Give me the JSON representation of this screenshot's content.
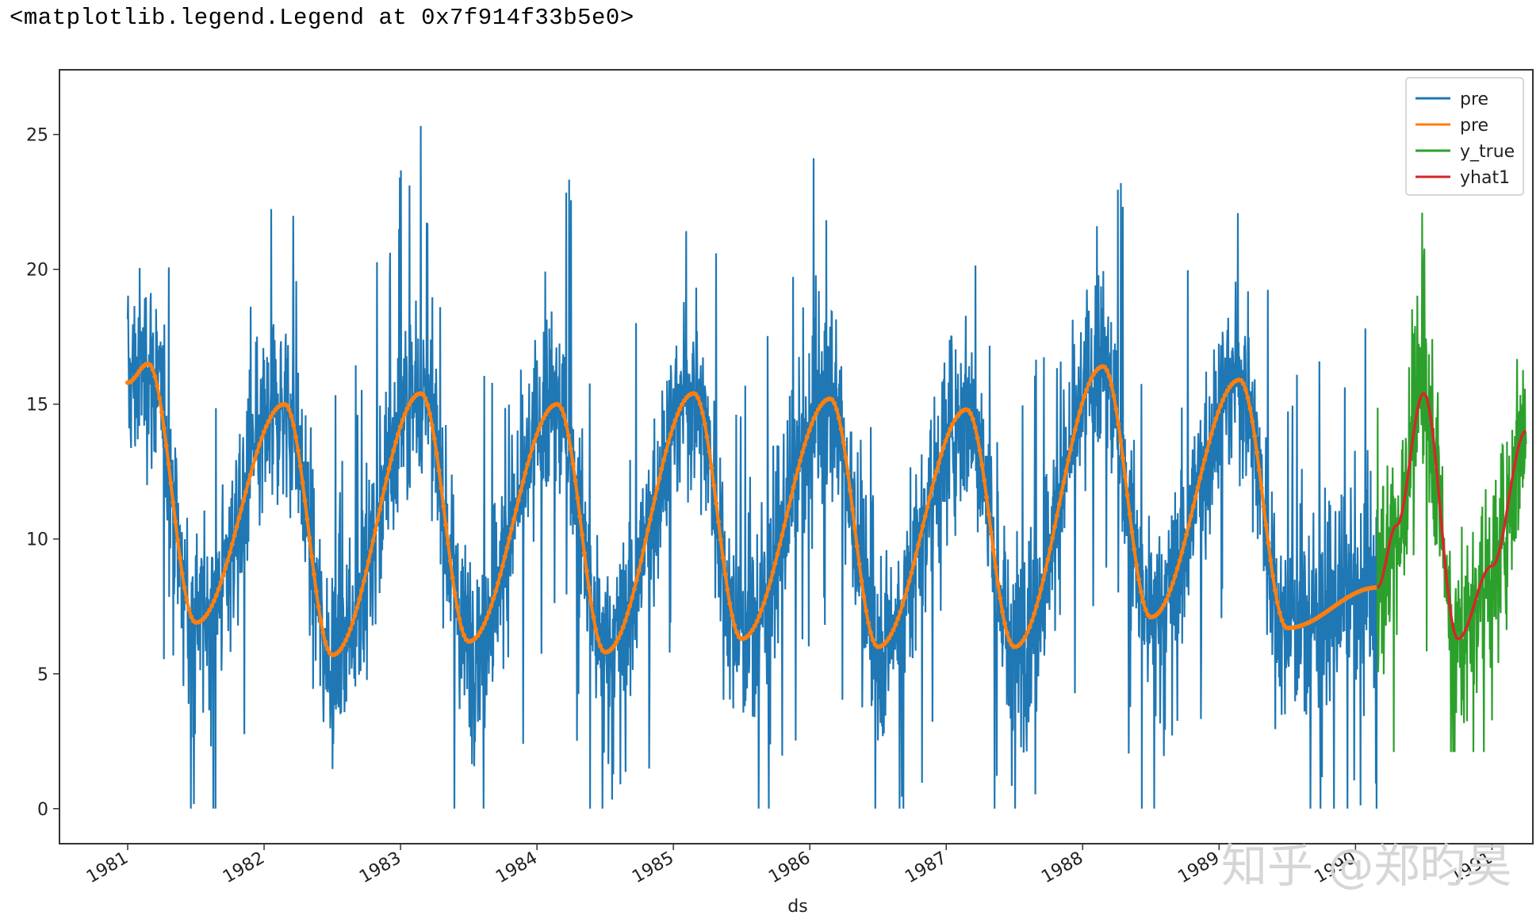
{
  "output": {
    "repr_text": "<matplotlib.legend.Legend at 0x7f914f33b5e0>"
  },
  "chart_data": {
    "type": "line",
    "title": "",
    "xlabel": "ds",
    "ylabel": "",
    "xlim": [
      1980.5,
      1991.3
    ],
    "ylim": [
      -1.3,
      27.4
    ],
    "x_ticks": [
      1981,
      1982,
      1983,
      1984,
      1985,
      1986,
      1987,
      1988,
      1989,
      1990,
      1991
    ],
    "x_tick_labels": [
      "1981",
      "1982",
      "1983",
      "1984",
      "1985",
      "1986",
      "1987",
      "1988",
      "1989",
      "1990",
      "1991"
    ],
    "y_ticks": [
      0,
      5,
      10,
      15,
      20,
      25
    ],
    "y_tick_labels": [
      "0",
      "5",
      "10",
      "15",
      "20",
      "25"
    ],
    "grid": false,
    "legend_position": "top-right",
    "series": [
      {
        "name": "pre",
        "color": "#1f77b4",
        "kind": "noisy-daily",
        "x_range": [
          1981.0,
          1990.16
        ],
        "smooth_keypoints": [
          [
            1981.0,
            15.8
          ],
          [
            1981.15,
            16.5
          ],
          [
            1981.5,
            6.9
          ],
          [
            1982.15,
            15.0
          ],
          [
            1982.5,
            5.7
          ],
          [
            1983.15,
            15.4
          ],
          [
            1983.5,
            6.2
          ],
          [
            1984.15,
            15.0
          ],
          [
            1984.5,
            5.8
          ],
          [
            1985.15,
            15.4
          ],
          [
            1985.5,
            6.3
          ],
          [
            1986.15,
            15.2
          ],
          [
            1986.5,
            6.0
          ],
          [
            1987.15,
            14.8
          ],
          [
            1987.5,
            6.0
          ],
          [
            1988.15,
            16.4
          ],
          [
            1988.5,
            7.1
          ],
          [
            1989.15,
            15.9
          ],
          [
            1989.5,
            6.7
          ],
          [
            1990.16,
            8.2
          ]
        ],
        "max": 26.3,
        "min": 0.0
      },
      {
        "name": "pre",
        "color": "#ff7f0e",
        "kind": "smooth-with-markers",
        "x_range": [
          1981.0,
          1990.16
        ],
        "keypoints": [
          [
            1981.0,
            15.8
          ],
          [
            1981.15,
            16.5
          ],
          [
            1981.5,
            6.9
          ],
          [
            1982.15,
            15.0
          ],
          [
            1982.5,
            5.7
          ],
          [
            1983.15,
            15.4
          ],
          [
            1983.5,
            6.2
          ],
          [
            1984.15,
            15.0
          ],
          [
            1984.5,
            5.8
          ],
          [
            1985.15,
            15.4
          ],
          [
            1985.5,
            6.3
          ],
          [
            1986.15,
            15.2
          ],
          [
            1986.5,
            6.0
          ],
          [
            1987.15,
            14.8
          ],
          [
            1987.5,
            6.0
          ],
          [
            1988.15,
            16.4
          ],
          [
            1988.5,
            7.1
          ],
          [
            1989.15,
            15.9
          ],
          [
            1989.5,
            6.7
          ],
          [
            1990.16,
            8.2
          ]
        ]
      },
      {
        "name": "y_true",
        "color": "#2ca02c",
        "kind": "noisy-daily",
        "x_range": [
          1990.16,
          1991.25
        ],
        "smooth_keypoints": [
          [
            1990.16,
            8.2
          ],
          [
            1990.3,
            10.5
          ],
          [
            1990.5,
            15.4
          ],
          [
            1990.75,
            6.3
          ],
          [
            1991.0,
            9.0
          ],
          [
            1991.25,
            14.0
          ]
        ],
        "max": 22.1,
        "min": 2.1
      },
      {
        "name": "yhat1",
        "color": "#d62728",
        "kind": "smooth",
        "x_range": [
          1990.16,
          1991.25
        ],
        "keypoints": [
          [
            1990.16,
            8.2
          ],
          [
            1990.3,
            10.5
          ],
          [
            1990.5,
            15.4
          ],
          [
            1990.75,
            6.3
          ],
          [
            1991.0,
            9.0
          ],
          [
            1991.25,
            14.0
          ]
        ]
      }
    ]
  },
  "watermark": {
    "text": "知乎 @郑昀昊"
  }
}
